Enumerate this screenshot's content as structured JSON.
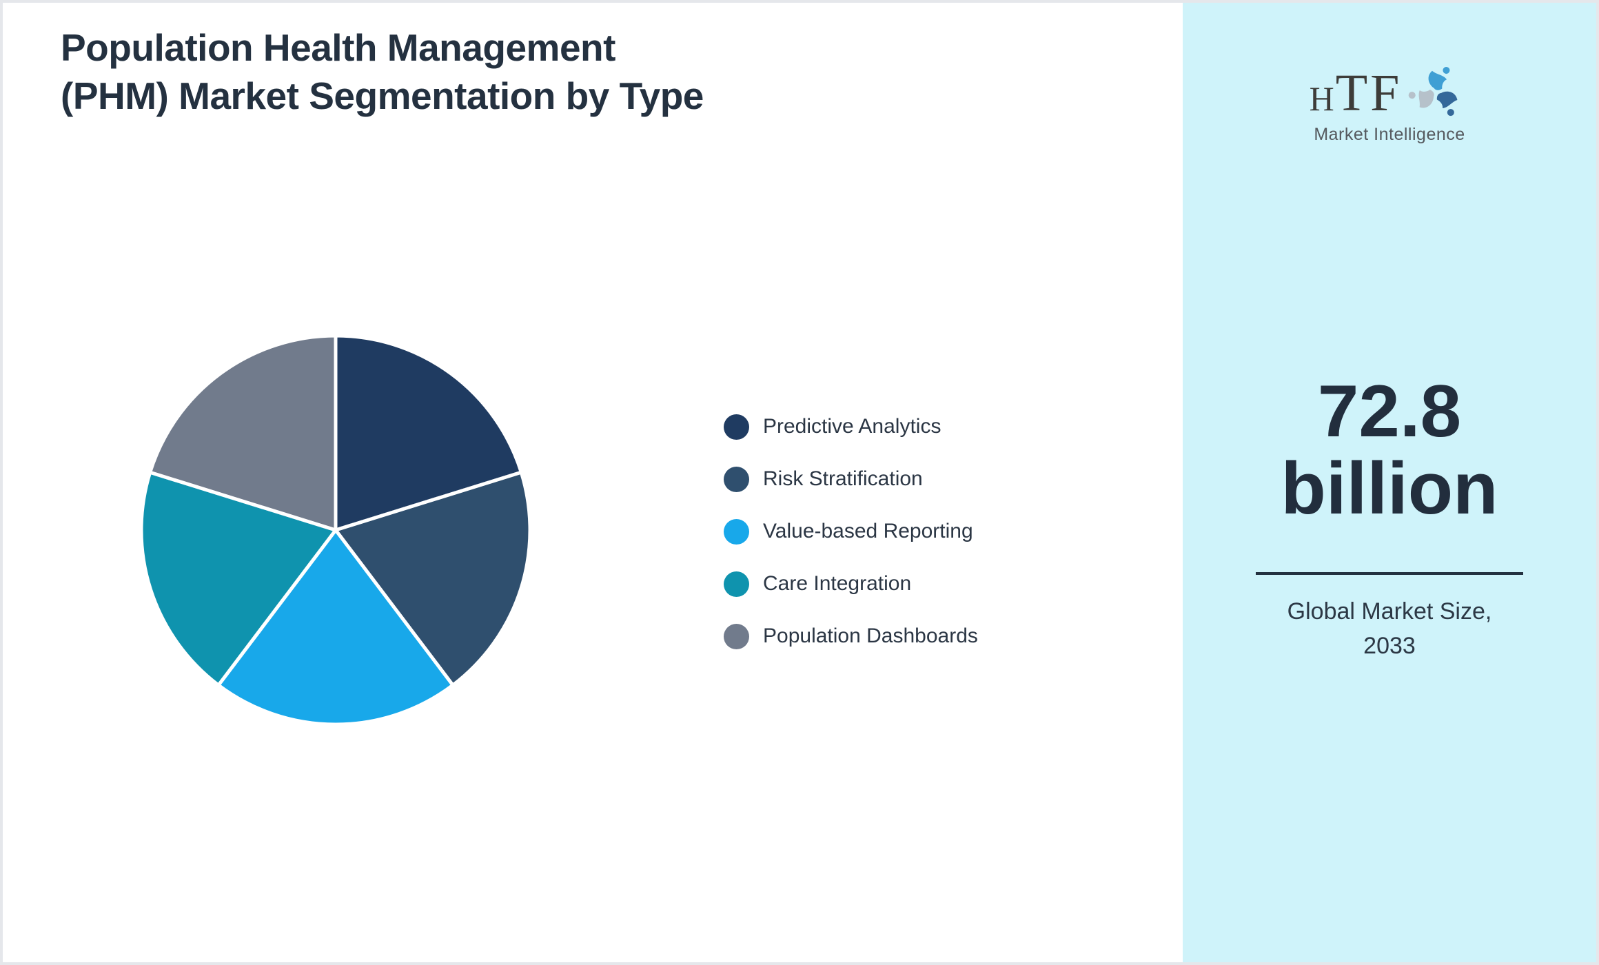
{
  "header": {
    "title": "Population Health Management (PHM) Market Segmentation by Type"
  },
  "chart_data": {
    "type": "pie",
    "title": "Population Health Management (PHM) Market Segmentation by Type",
    "labels": [
      "Predictive Analytics",
      "Risk Stratification",
      "Value-based Reporting",
      "Care Integration",
      "Population Dashboards"
    ],
    "values": [
      20.2,
      19.5,
      20.6,
      19.5,
      20.2
    ],
    "unit": "percent-of-total",
    "colors": [
      "#1f3b61",
      "#2f4f6e",
      "#18a8ea",
      "#0f93ae",
      "#717b8c"
    ],
    "start_angle_deg": 0,
    "direction": "clockwise",
    "slice_separator_color": "#ffffff",
    "legend_position": "right-of-chart",
    "data_labels_shown": false
  },
  "sidebar": {
    "background_color": "#cff3fa",
    "logo": {
      "text_h": "H",
      "text_tf": "TF",
      "subtext": "Market Intelligence",
      "text_color": "#3d3c39",
      "figure_colors": [
        "#3f9fd4",
        "#34689a",
        "#b6c1ca"
      ]
    },
    "market_size_value": "72.8 billion",
    "market_size_caption": "Global Market Size, 2033",
    "divider_color": "#233140"
  }
}
